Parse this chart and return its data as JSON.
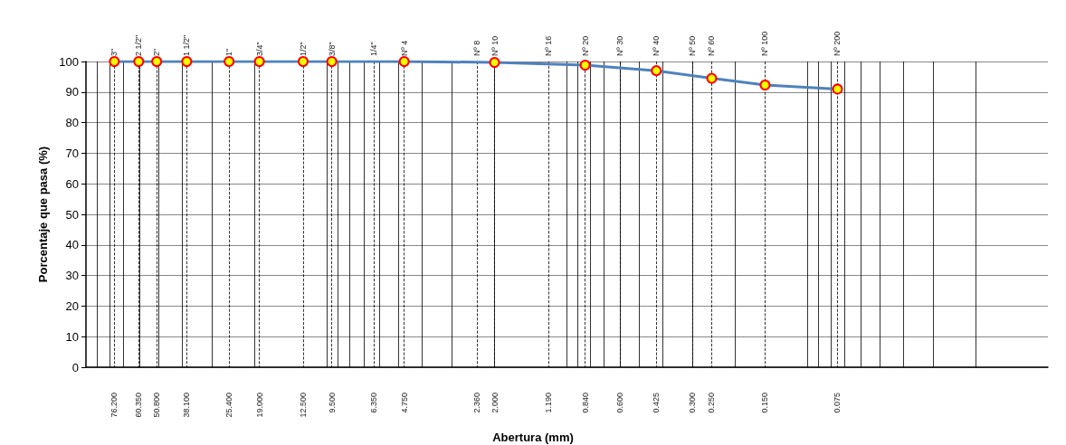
{
  "chart_data": {
    "type": "line",
    "xlabel": "Abertura (mm)",
    "ylabel": "Porcentaje que pasa (%)",
    "log": "x",
    "grid": true,
    "marker": "circle",
    "line_style": "solid",
    "x": [
      76.2,
      60.35,
      50.8,
      38.1,
      25.4,
      19.0,
      12.5,
      9.5,
      4.75,
      2.0,
      0.84,
      0.425,
      0.25,
      0.15,
      0.075
    ],
    "series": [
      {
        "color": "#4f81bd",
        "values": [
          100,
          100,
          100,
          100,
          100,
          100,
          100,
          100,
          100,
          99.7,
          98.8,
          97.0,
          94.5,
          92.3,
          91.0
        ]
      }
    ],
    "xlim": [
      100,
      0.01
    ],
    "xticks": [
      {
        "value": 76.2,
        "label": "76.200"
      },
      {
        "value": 60.35,
        "label": "60.350"
      },
      {
        "value": 50.8,
        "label": "50.800"
      },
      {
        "value": 38.1,
        "label": "38.100"
      },
      {
        "value": 25.4,
        "label": "25.400"
      },
      {
        "value": 19.0,
        "label": "19.000"
      },
      {
        "value": 12.5,
        "label": "12.500"
      },
      {
        "value": 9.5,
        "label": "9.500"
      },
      {
        "value": 6.35,
        "label": "6.350"
      },
      {
        "value": 4.75,
        "label": "4.750"
      },
      {
        "value": 2.36,
        "label": "2.360"
      },
      {
        "value": 2.0,
        "label": "2.000"
      },
      {
        "value": 1.19,
        "label": "1.190"
      },
      {
        "value": 0.84,
        "label": "0.840"
      },
      {
        "value": 0.6,
        "label": "0.600"
      },
      {
        "value": 0.425,
        "label": "0.425"
      },
      {
        "value": 0.3,
        "label": "0.300"
      },
      {
        "value": 0.25,
        "label": "0.250"
      },
      {
        "value": 0.15,
        "label": "0.150"
      },
      {
        "value": 0.075,
        "label": "0.075"
      }
    ],
    "annotations": [
      "3\"",
      "2 1/2\"",
      "2\"",
      "1 1/2\"",
      "1\"",
      "3/4\"",
      "1/2\"",
      "3/8\"",
      "1/4\"",
      "Nº 4",
      "Nº 8",
      "Nº 10",
      "Nº 16",
      "Nº 20",
      "Nº 30",
      "Nº 40",
      "Nº 50",
      "Nº 60",
      "Nº 100",
      "Nº 200"
    ],
    "ylim": [
      0,
      100
    ],
    "yticks": [
      0,
      10,
      20,
      30,
      40,
      50,
      60,
      70,
      80,
      90,
      100
    ]
  }
}
